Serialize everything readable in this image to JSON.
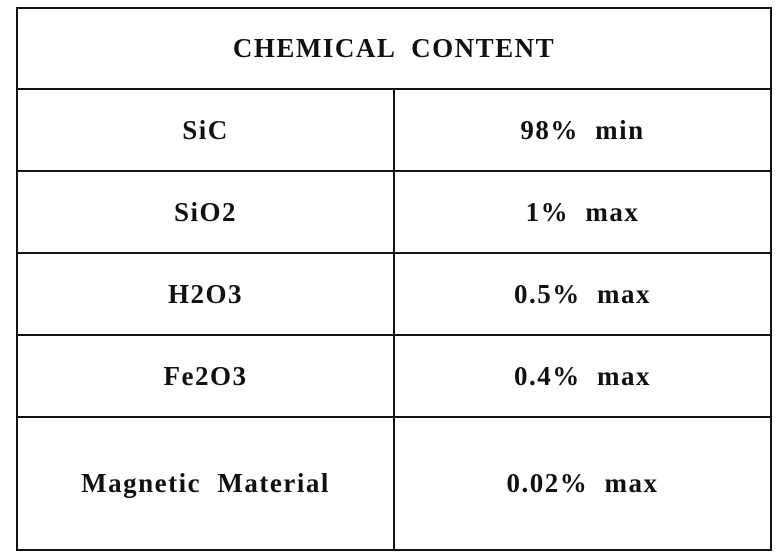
{
  "header": {
    "title": "CHEMICAL CONTENT"
  },
  "table": {
    "rows": [
      [
        "SiC",
        "98% min"
      ],
      [
        "SiO2",
        "1% max"
      ],
      [
        "H2O3",
        "0.5% max"
      ],
      [
        "Fe2O3",
        "0.4% max"
      ],
      [
        "Magnetic Material",
        "0.02% max"
      ]
    ]
  }
}
